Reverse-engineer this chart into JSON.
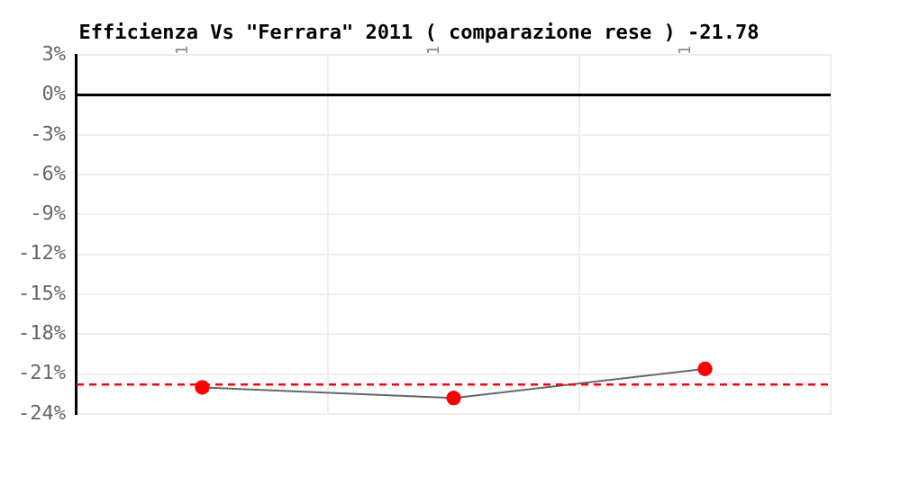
{
  "chart_data": {
    "type": "line",
    "title": "Efficienza Vs \"Ferrara\" 2011 ( comparazione rese ) -21.78",
    "categories": [
      "1",
      "1",
      "1"
    ],
    "series": [
      {
        "color": "#ff0000",
        "values": [
          -22.0,
          -22.8,
          -20.6
        ]
      }
    ],
    "ylim": [
      -24,
      3
    ],
    "yticks": [
      {
        "value": 3,
        "label": "3%"
      },
      {
        "value": 0,
        "label": "0%"
      },
      {
        "value": -3,
        "label": "-3%"
      },
      {
        "value": -6,
        "label": "-6%"
      },
      {
        "value": -9,
        "label": "-9%"
      },
      {
        "value": -12,
        "label": "-12%"
      },
      {
        "value": -15,
        "label": "-15%"
      },
      {
        "value": -18,
        "label": "-18%"
      },
      {
        "value": -21,
        "label": "-21%"
      },
      {
        "value": -24,
        "label": "-24%"
      }
    ],
    "ref_lines": [
      {
        "axis": "y",
        "value": 0,
        "color": "#000000",
        "line_style": "solid"
      },
      {
        "axis": "y",
        "value": -21.78,
        "color": "#ff0000",
        "line_style": "dashed"
      }
    ],
    "grid": true,
    "marker": "circle",
    "legend": false
  }
}
